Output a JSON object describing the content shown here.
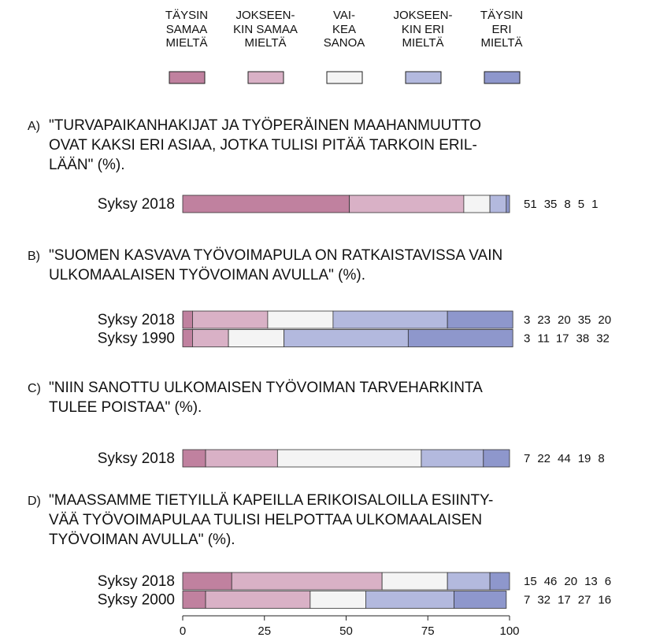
{
  "chart_data": {
    "type": "bar",
    "orientation": "horizontal",
    "stacked": true,
    "xlim": [
      0,
      100
    ],
    "xticks": [
      0,
      25,
      50,
      75,
      100
    ],
    "series": [
      {
        "name": "TÄYSIN\nSAMAA\nMIELTÄ",
        "color": "#c0819f"
      },
      {
        "name": "JOKSEEN-\nKIN SAMAA\nMIELTÄ",
        "color": "#d9b1c6"
      },
      {
        "name": "VAI-\nKEA\nSANOA",
        "color": "#f4f4f4"
      },
      {
        "name": "JOKSEEN-\nKIN ERI\nMIELTÄ",
        "color": "#b3b9de"
      },
      {
        "name": "TÄYSIN\nERI\nMIELTÄ",
        "color": "#8e97cc"
      }
    ],
    "panels": [
      {
        "label": "A)",
        "title": "\"TURVAPAIKANHAKIJAT JA TYÖPERÄINEN MAAHANMUUTTO\nOVAT KAKSI ERI ASIAA, JOTKA TULISI PITÄÄ TARKOIN ERIL-\nLÄÄN\" (%).",
        "categories": [
          "Syksy 2018"
        ],
        "values": [
          [
            51,
            35,
            8,
            5,
            1
          ]
        ]
      },
      {
        "label": "B)",
        "title": "\"SUOMEN KASVAVA TYÖVOIMAPULA ON RATKAISTAVISSA VAIN\nULKOMAALAISEN TYÖVOIMAN AVULLA\" (%).",
        "categories": [
          "Syksy 2018",
          "Syksy 1990"
        ],
        "values": [
          [
            3,
            23,
            20,
            35,
            20
          ],
          [
            3,
            11,
            17,
            38,
            32
          ]
        ]
      },
      {
        "label": "C)",
        "title": "\"NIIN SANOTTU ULKOMAISEN TYÖVOIMAN TARVEHARKINTA\nTULEE POISTAA\" (%).",
        "categories": [
          "Syksy 2018"
        ],
        "values": [
          [
            7,
            22,
            44,
            19,
            8
          ]
        ]
      },
      {
        "label": "D)",
        "title": "\"MAASSAMME TIETYILLÄ KAPEILLA ERIKOISALOILLA ESIINTY-\nVÄÄ TYÖVOIMAPULAA TULISI HELPOTTAA ULKOMAALAISEN\nTYÖVOIMAN AVULLA\" (%).",
        "categories": [
          "Syksy 2018",
          "Syksy 2000"
        ],
        "values": [
          [
            15,
            46,
            20,
            13,
            6
          ],
          [
            7,
            32,
            17,
            27,
            16
          ]
        ]
      }
    ]
  }
}
